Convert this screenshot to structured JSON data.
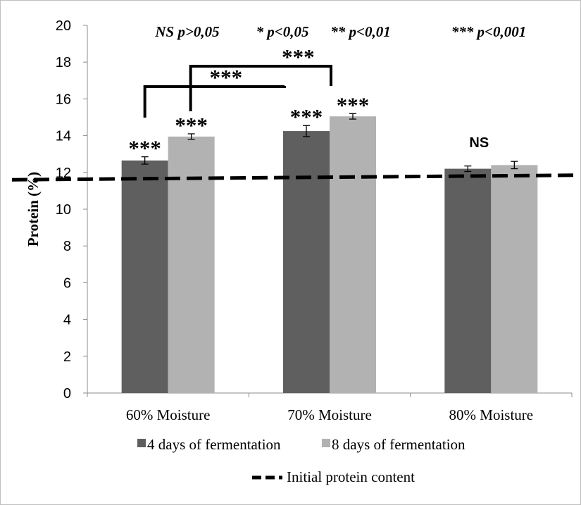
{
  "chart_data": {
    "type": "bar",
    "categories": [
      "60% Moisture",
      "70% Moisture",
      "80% Moisture"
    ],
    "series": [
      {
        "name": "4 days of fermentation",
        "color": "#5f5f5f",
        "values": [
          12.65,
          14.25,
          12.2
        ],
        "errors": [
          0.2,
          0.3,
          0.15
        ]
      },
      {
        "name": "8 days of fermentation",
        "color": "#b2b2b2",
        "values": [
          13.95,
          15.05,
          12.4
        ],
        "errors": [
          0.15,
          0.15,
          0.2
        ]
      }
    ],
    "reference_line": {
      "name": "Initial protein content",
      "start_value": 11.6,
      "end_value": 11.85,
      "color": "#000000",
      "style": "dashed"
    },
    "ylabel": "Protein (%)",
    "xlabel": "",
    "ylim": [
      0,
      20
    ],
    "yticks": [
      "0",
      "2",
      "4",
      "6",
      "8",
      "10",
      "12",
      "14",
      "16",
      "18",
      "20"
    ],
    "significance_legend": [
      "NS  p>0,05",
      "* p<0,05",
      "**   p<0,01",
      "*** p<0,001"
    ],
    "bar_labels": {
      "series0": [
        "***",
        "***",
        ""
      ],
      "series1": [
        "***",
        "***",
        ""
      ]
    },
    "group_label_80": "NS",
    "brackets": [
      {
        "from_series": 0,
        "from_category": 0,
        "to_series": 0,
        "to_category": 1,
        "label": "***"
      },
      {
        "from_series": 1,
        "from_category": 0,
        "to_series": 1,
        "to_category": 1,
        "label": "***"
      }
    ],
    "legend_position": "bottom",
    "grid": false
  }
}
